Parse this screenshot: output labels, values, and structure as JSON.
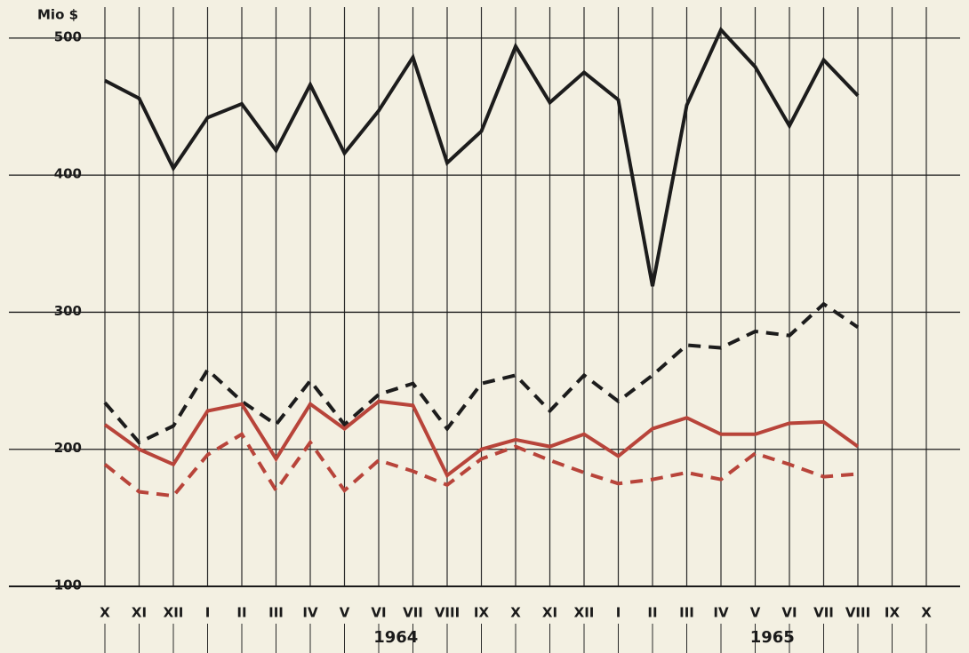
{
  "chart_data": {
    "type": "line",
    "y_unit_label": "Mio $",
    "categories": [
      "X",
      "XI",
      "XII",
      "I",
      "II",
      "III",
      "IV",
      "V",
      "VI",
      "VII",
      "VIII",
      "IX",
      "X",
      "XI",
      "XII",
      "I",
      "II",
      "III",
      "IV",
      "V",
      "VI",
      "VII",
      "VIII",
      "IX",
      "X"
    ],
    "x_groups": [
      {
        "label": "1964",
        "categories": [
          3,
          14
        ]
      },
      {
        "label": "1965",
        "categories": [
          15,
          24
        ]
      }
    ],
    "ylim": [
      100,
      520
    ],
    "yticks": [
      100,
      200,
      300,
      400,
      500
    ],
    "grid": true,
    "series": [
      {
        "color": "#1c1c1c",
        "dashed": false,
        "values": [
          469,
          456,
          405,
          442,
          452,
          418,
          466,
          416,
          447,
          486,
          409,
          432,
          494,
          453,
          475,
          455,
          319,
          451,
          506,
          479,
          436,
          484,
          458,
          null,
          null
        ]
      },
      {
        "color": "#1c1c1c",
        "dashed": true,
        "values": [
          234,
          205,
          217,
          258,
          235,
          218,
          250,
          218,
          240,
          248,
          215,
          248,
          254,
          228,
          254,
          235,
          254,
          276,
          274,
          286,
          283,
          306,
          289,
          null,
          null
        ]
      },
      {
        "color": "#b8443a",
        "dashed": false,
        "values": [
          218,
          200,
          189,
          228,
          233,
          193,
          233,
          215,
          235,
          232,
          181,
          200,
          207,
          202,
          211,
          195,
          215,
          223,
          211,
          211,
          219,
          220,
          202,
          null,
          null
        ]
      },
      {
        "color": "#b8443a",
        "dashed": true,
        "values": [
          189,
          169,
          166,
          196,
          211,
          170,
          205,
          170,
          192,
          184,
          174,
          193,
          202,
          192,
          183,
          175,
          178,
          183,
          178,
          197,
          189,
          180,
          182,
          null,
          null
        ]
      }
    ]
  }
}
